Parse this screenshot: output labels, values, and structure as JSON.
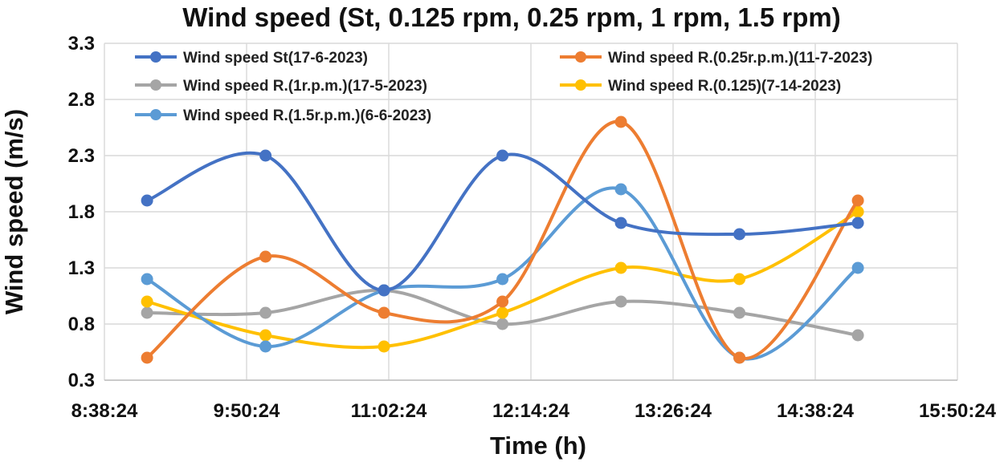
{
  "chart_data": {
    "type": "line",
    "title": "Wind speed (St, 0.125 rpm, 0.25 rpm, 1 rpm, 1.5 rpm)",
    "xlabel": "Time (h)",
    "ylabel": "Wind speed (m/s)",
    "x_tick_labels": [
      "8:38:24",
      "9:50:24",
      "11:02:24",
      "12:14:24",
      "13:26:24",
      "14:38:24",
      "15:50:24"
    ],
    "x_tick_minutes": [
      518.4,
      590.4,
      662.4,
      734.4,
      806.4,
      878.4,
      950.4
    ],
    "xlim_minutes": [
      518.4,
      950.4
    ],
    "y_tick_labels": [
      "0.3",
      "0.8",
      "1.3",
      "1.8",
      "2.3",
      "2.8",
      "3.3"
    ],
    "ylim": [
      0.3,
      3.3
    ],
    "grid": true,
    "smooth": true,
    "x_minutes": [
      540,
      600,
      660,
      720,
      780,
      840,
      900
    ],
    "series": [
      {
        "name": "Wind speed St(17-6-2023)",
        "color": "#4472C4",
        "values": [
          1.9,
          2.3,
          1.1,
          2.3,
          1.7,
          1.6,
          1.7
        ]
      },
      {
        "name": "Wind speed R.(0.25r.p.m.)(11-7-2023)",
        "color": "#ED7D31",
        "values": [
          0.5,
          1.4,
          0.9,
          1.0,
          2.6,
          0.5,
          1.9
        ]
      },
      {
        "name": "Wind speed R.(1r.p.m.)(17-5-2023)",
        "color": "#A5A5A5",
        "values": [
          0.9,
          0.9,
          1.1,
          0.8,
          1.0,
          0.9,
          0.7
        ]
      },
      {
        "name": "Wind speed R.(0.125)(7-14-2023)",
        "color": "#FFC000",
        "values": [
          1.0,
          0.7,
          0.6,
          0.9,
          1.3,
          1.2,
          1.8
        ]
      },
      {
        "name": "Wind speed R.(1.5r.p.m.)(6-6-2023)",
        "color": "#5B9BD5",
        "values": [
          1.2,
          0.6,
          1.1,
          1.2,
          2.0,
          0.5,
          1.3
        ]
      }
    ],
    "draw_order": [
      2,
      3,
      4,
      1,
      0
    ],
    "legend_layout": [
      [
        0,
        1
      ],
      [
        2,
        3
      ],
      [
        4
      ]
    ]
  }
}
